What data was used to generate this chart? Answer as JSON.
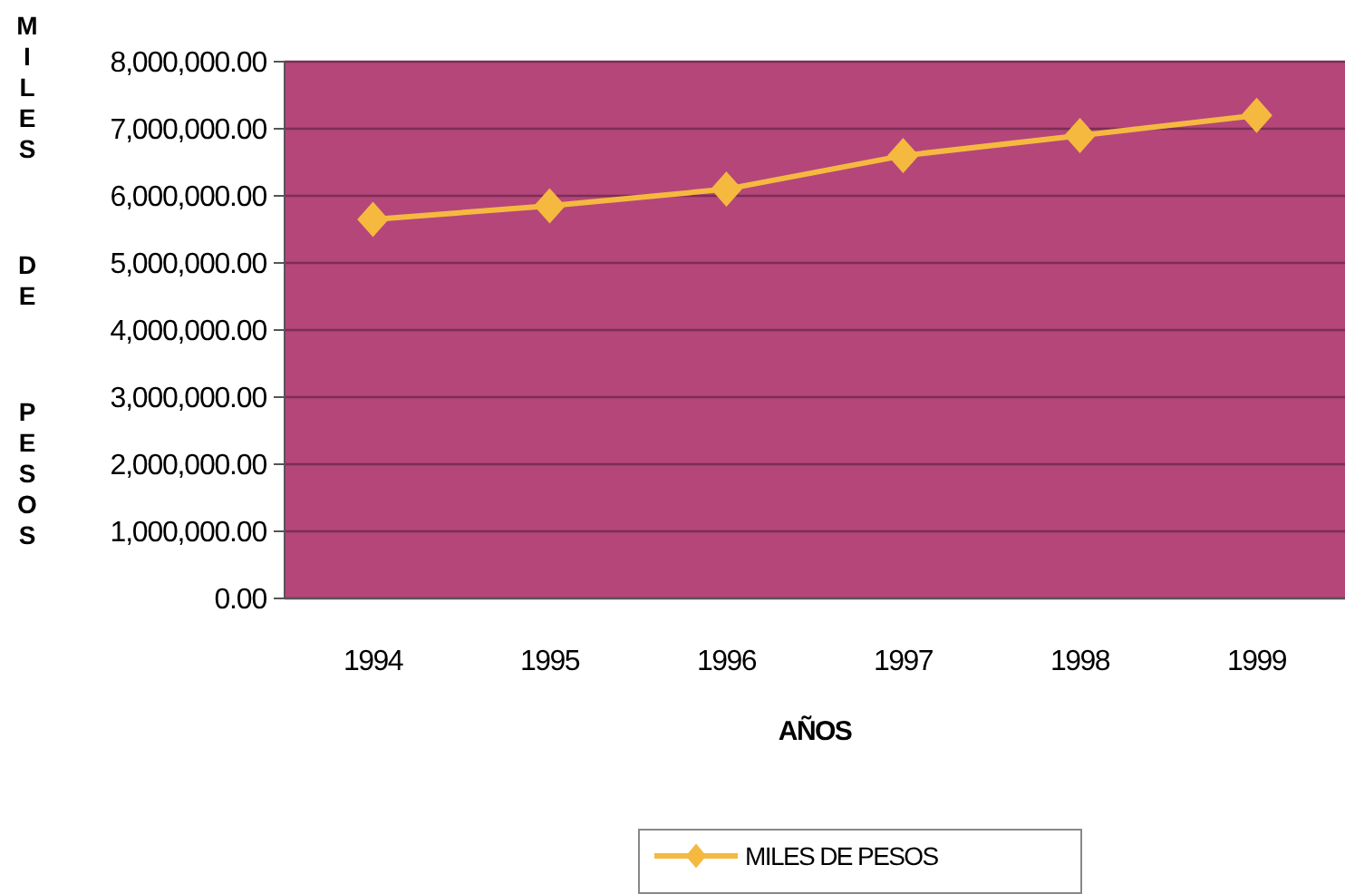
{
  "chart_data": {
    "type": "line",
    "xlabel": "AÑOS",
    "ylabel": "MILES DE PESOS",
    "categories": [
      "1994",
      "1995",
      "1996",
      "1997",
      "1998",
      "1999"
    ],
    "series": [
      {
        "name": "MILES DE PESOS",
        "color": "#f5b940",
        "values": [
          5650000,
          5850000,
          6100000,
          6600000,
          6900000,
          7200000
        ]
      }
    ],
    "ylim": [
      0,
      8000000
    ],
    "yticks": [
      {
        "value": 0,
        "label": "0.00"
      },
      {
        "value": 1000000,
        "label": "1,000,000.00"
      },
      {
        "value": 2000000,
        "label": "2,000,000.00"
      },
      {
        "value": 3000000,
        "label": "3,000,000.00"
      },
      {
        "value": 4000000,
        "label": "4,000,000.00"
      },
      {
        "value": 5000000,
        "label": "5,000,000.00"
      },
      {
        "value": 6000000,
        "label": "6,000,000.00"
      },
      {
        "value": 7000000,
        "label": "7,000,000.00"
      },
      {
        "value": 8000000,
        "label": "8,000,000.00"
      }
    ],
    "grid": "y",
    "legend": "bottom",
    "marker": "diamond",
    "line_style": "solid"
  }
}
